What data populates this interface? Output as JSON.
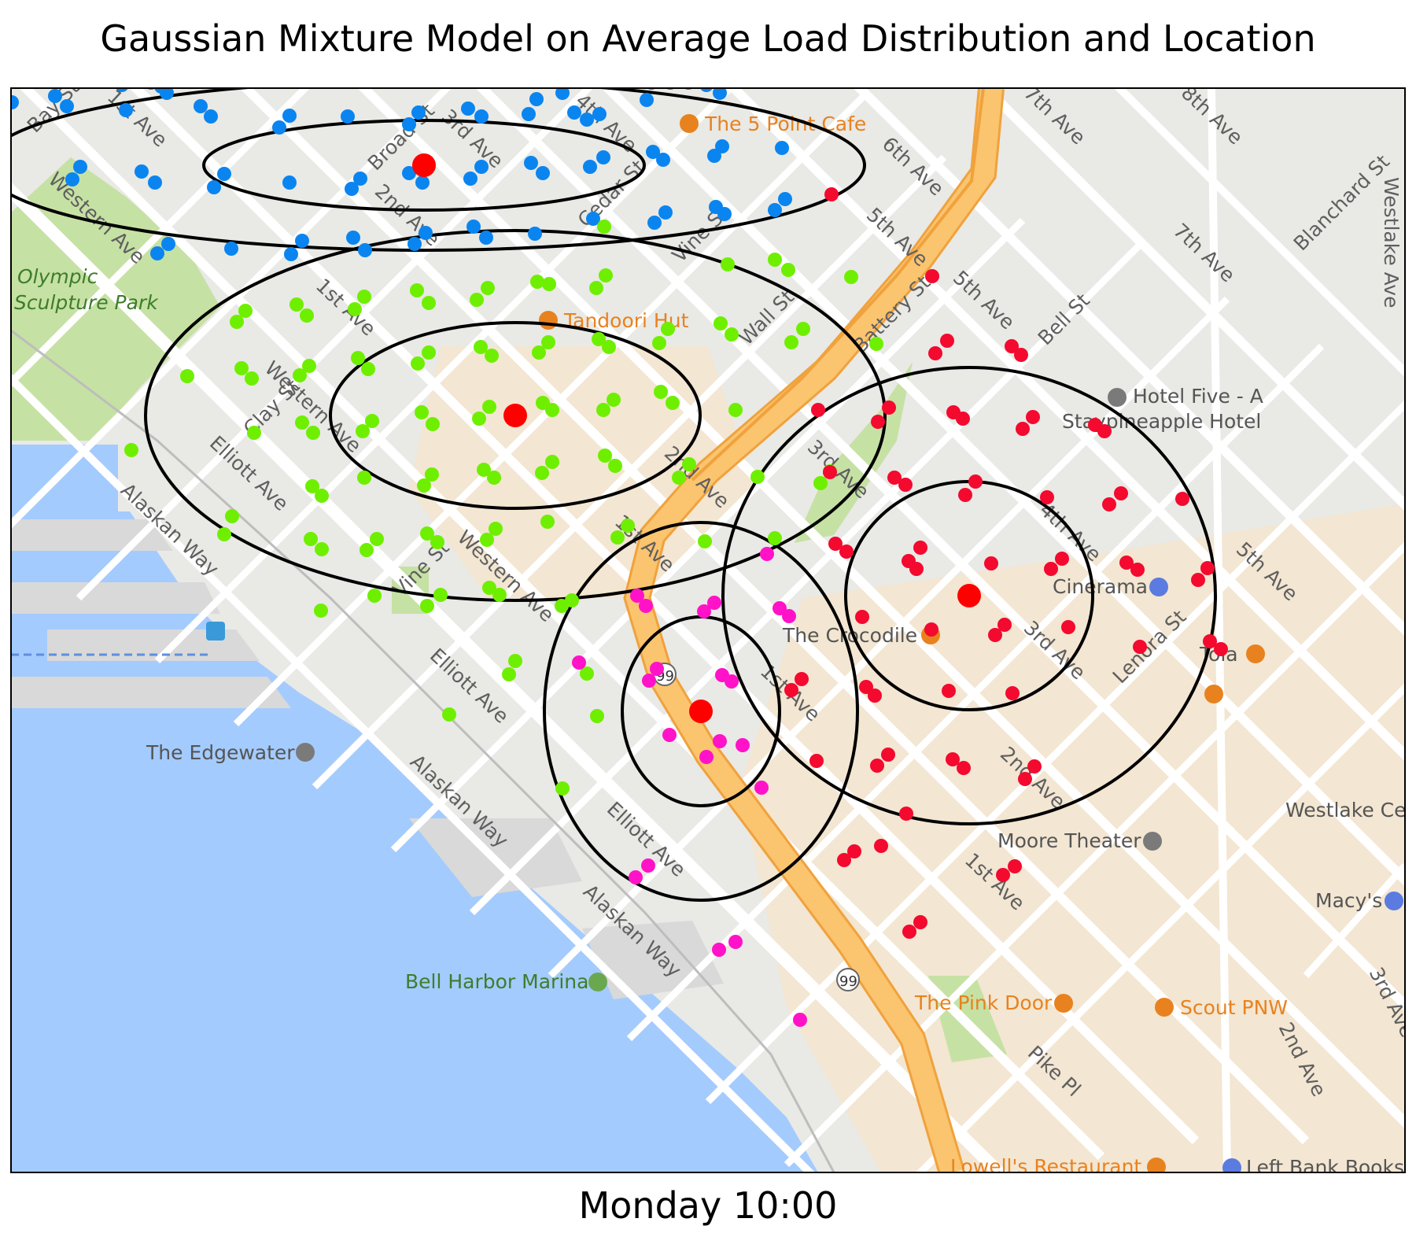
{
  "title": "Gaussian Mixture Model on Average Load Distribution and Location",
  "footer": "Monday 10:00",
  "colors": {
    "water": "#a4cbfd",
    "land": "#e9e9e6",
    "park": "#c6e1a4",
    "commercial": "#f3e6d2",
    "highway": "#fbc46f",
    "highway_edge": "#f0a23c",
    "road": "#ffffff",
    "poi_food": "#e8821e",
    "poi_entertain": "#7a7a7a",
    "poi_shop": "#5b7be0"
  },
  "map_labels": [
    {
      "text": "1st Ave"
    },
    {
      "text": "Bay St"
    },
    {
      "text": "Broad St"
    },
    {
      "text": "3rd Ave"
    },
    {
      "text": "4th Ave"
    },
    {
      "text": "6th Ave"
    },
    {
      "text": "7th Ave"
    },
    {
      "text": "8th Ave"
    },
    {
      "text": "Western Ave"
    },
    {
      "text": "2nd Ave"
    },
    {
      "text": "Cedar St"
    },
    {
      "text": "Vine St"
    },
    {
      "text": "5th Ave"
    },
    {
      "text": "Blanchard St"
    },
    {
      "text": "Westlake Ave"
    },
    {
      "text": "Wall St"
    },
    {
      "text": "Battery St"
    },
    {
      "text": "Bell St"
    },
    {
      "text": "Clay St"
    },
    {
      "text": "Elliott Ave"
    },
    {
      "text": "Alaskan Way"
    },
    {
      "text": "Lenora St"
    },
    {
      "text": "Pike Pl"
    }
  ],
  "pois": [
    {
      "text": "The 5 Point Cafe",
      "icon": "fork-knife-icon"
    },
    {
      "text": "Tandoori Hut",
      "icon": "fork-knife-icon"
    },
    {
      "text": "Hotel Five - A",
      "icon": "hotel-icon"
    },
    {
      "text": "Staypineapple Hotel",
      "icon": ""
    },
    {
      "text": "Cinerama",
      "icon": "film-icon"
    },
    {
      "text": "The Crocodile",
      "icon": "cocktail-icon"
    },
    {
      "text": "Tola",
      "icon": "fork-knife-icon"
    },
    {
      "text": "The Edgewater",
      "icon": "bed-icon"
    },
    {
      "text": "Moore Theater",
      "icon": "theater-icon"
    },
    {
      "text": "Westlake Ce",
      "icon": ""
    },
    {
      "text": "Macy's",
      "icon": "shopping-bag-icon"
    },
    {
      "text": "Bell Harbor Marina",
      "icon": "marina-icon"
    },
    {
      "text": "The Pink Door",
      "icon": "fork-knife-icon"
    },
    {
      "text": "Scout PNW",
      "icon": "fork-knife-icon"
    },
    {
      "text": "Lowell's Restaurant",
      "icon": "fork-knife-icon"
    },
    {
      "text": "Left Bank Books",
      "icon": "shopping-bag-icon"
    },
    {
      "text": "Olympic Sculpture Park",
      "icon": ""
    },
    {
      "text": "99",
      "icon": "route-shield-icon"
    }
  ],
  "chart_data": {
    "type": "scatter",
    "title": "Gaussian Mixture Model on Average Load Distribution and Location",
    "xlabel": "Monday 10:00",
    "ylabel": "",
    "grid": false,
    "clusters": [
      {
        "color": "#0a85f0",
        "center": [
          539,
          210
        ],
        "ellipses": [
          {
            "rx": 280,
            "ry": 57
          },
          {
            "rx": 560,
            "ry": 108
          }
        ],
        "points": [
          [
            15,
            130
          ],
          [
            70,
            122
          ],
          [
            85,
            135
          ],
          [
            155,
            108
          ],
          [
            160,
            140
          ],
          [
            192,
            105
          ],
          [
            205,
            110
          ],
          [
            255,
            135
          ],
          [
            268,
            148
          ],
          [
            212,
            118
          ],
          [
            355,
            162
          ],
          [
            368,
            147
          ],
          [
            442,
            148
          ],
          [
            448,
            100
          ],
          [
            520,
            158
          ],
          [
            532,
            143
          ],
          [
            595,
            138
          ],
          [
            612,
            148
          ],
          [
            672,
            145
          ],
          [
            682,
            126
          ],
          [
            730,
            143
          ],
          [
            746,
            152
          ],
          [
            762,
            145
          ],
          [
            715,
            118
          ],
          [
            828,
            105
          ],
          [
            852,
            105
          ],
          [
            875,
            105
          ],
          [
            898,
            108
          ],
          [
            915,
            118
          ],
          [
            822,
            127
          ],
          [
            830,
            193
          ],
          [
            843,
            203
          ],
          [
            908,
            198
          ],
          [
            918,
            186
          ],
          [
            994,
            188
          ],
          [
            102,
            212
          ],
          [
            92,
            228
          ],
          [
            180,
            218
          ],
          [
            197,
            232
          ],
          [
            272,
            238
          ],
          [
            285,
            221
          ],
          [
            368,
            232
          ],
          [
            447,
            240
          ],
          [
            458,
            227
          ],
          [
            520,
            220
          ],
          [
            537,
            232
          ],
          [
            598,
            227
          ],
          [
            612,
            212
          ],
          [
            675,
            207
          ],
          [
            690,
            220
          ],
          [
            750,
            212
          ],
          [
            767,
            200
          ],
          [
            754,
            278
          ],
          [
            832,
            283
          ],
          [
            846,
            270
          ],
          [
            910,
            263
          ],
          [
            921,
            272
          ],
          [
            985,
            267
          ],
          [
            998,
            253
          ],
          [
            200,
            322
          ],
          [
            214,
            310
          ],
          [
            294,
            316
          ],
          [
            370,
            323
          ],
          [
            384,
            306
          ],
          [
            449,
            302
          ],
          [
            464,
            318
          ],
          [
            527,
            310
          ],
          [
            541,
            296
          ],
          [
            602,
            288
          ],
          [
            618,
            302
          ],
          [
            680,
            297
          ]
        ]
      },
      {
        "color": "#6fef00",
        "center": [
          655,
          528
        ],
        "ellipses": [
          {
            "rx": 235,
            "ry": 118
          },
          {
            "rx": 470,
            "ry": 235
          }
        ],
        "points": [
          [
            768,
            288
          ],
          [
            925,
            336
          ],
          [
            985,
            330
          ],
          [
            1002,
            343
          ],
          [
            1082,
            352
          ],
          [
            770,
            350
          ],
          [
            758,
            366
          ],
          [
            698,
            361
          ],
          [
            683,
            358
          ],
          [
            620,
            366
          ],
          [
            606,
            381
          ],
          [
            530,
            369
          ],
          [
            545,
            385
          ],
          [
            463,
            377
          ],
          [
            451,
            393
          ],
          [
            377,
            387
          ],
          [
            390,
            401
          ],
          [
            312,
            395
          ],
          [
            301,
            409
          ],
          [
            849,
            418
          ],
          [
            838,
            436
          ],
          [
            916,
            411
          ],
          [
            930,
            425
          ],
          [
            1021,
            418
          ],
          [
            1006,
            435
          ],
          [
            1114,
            437
          ],
          [
            761,
            431
          ],
          [
            774,
            441
          ],
          [
            697,
            435
          ],
          [
            685,
            448
          ],
          [
            625,
            452
          ],
          [
            611,
            441
          ],
          [
            545,
            448
          ],
          [
            531,
            462
          ],
          [
            468,
            469
          ],
          [
            455,
            455
          ],
          [
            393,
            465
          ],
          [
            381,
            477
          ],
          [
            307,
            468
          ],
          [
            320,
            481
          ],
          [
            238,
            478
          ],
          [
            780,
            508
          ],
          [
            767,
            521
          ],
          [
            855,
            512
          ],
          [
            840,
            498
          ],
          [
            935,
            521
          ],
          [
            702,
            521
          ],
          [
            690,
            512
          ],
          [
            622,
            517
          ],
          [
            609,
            532
          ],
          [
            536,
            524
          ],
          [
            550,
            539
          ],
          [
            473,
            535
          ],
          [
            461,
            548
          ],
          [
            384,
            537
          ],
          [
            398,
            550
          ],
          [
            323,
            550
          ],
          [
            167,
            572
          ],
          [
            769,
            579
          ],
          [
            782,
            592
          ],
          [
            876,
            590
          ],
          [
            863,
            607
          ],
          [
            963,
            606
          ],
          [
            1055,
            599
          ],
          [
            1043,
            614
          ],
          [
            702,
            587
          ],
          [
            689,
            601
          ],
          [
            615,
            597
          ],
          [
            628,
            607
          ],
          [
            549,
            603
          ],
          [
            539,
            617
          ],
          [
            463,
            607
          ],
          [
            397,
            618
          ],
          [
            409,
            630
          ],
          [
            295,
            656
          ],
          [
            285,
            679
          ],
          [
            798,
            668
          ],
          [
            785,
            683
          ],
          [
            696,
            663
          ],
          [
            630,
            672
          ],
          [
            619,
            686
          ],
          [
            543,
            678
          ],
          [
            556,
            689
          ],
          [
            479,
            685
          ],
          [
            466,
            699
          ],
          [
            395,
            685
          ],
          [
            409,
            698
          ],
          [
            896,
            688
          ],
          [
            985,
            684
          ],
          [
            622,
            747
          ],
          [
            635,
            756
          ],
          [
            560,
            756
          ],
          [
            543,
            770
          ],
          [
            476,
            757
          ],
          [
            408,
            776
          ],
          [
            714,
            770
          ],
          [
            727,
            763
          ],
          [
            655,
            840
          ],
          [
            647,
            857
          ],
          [
            746,
            856
          ],
          [
            759,
            910
          ],
          [
            571,
            908
          ],
          [
            715,
            1002
          ]
        ]
      },
      {
        "color": "#ff12c8",
        "center": [
          891,
          904
        ],
        "ellipses": [
          {
            "rx": 100,
            "ry": 120
          },
          {
            "rx": 199,
            "ry": 240
          }
        ],
        "points": [
          [
            975,
            704
          ],
          [
            810,
            757
          ],
          [
            821,
            770
          ],
          [
            895,
            777
          ],
          [
            908,
            766
          ],
          [
            991,
            773
          ],
          [
            1003,
            783
          ],
          [
            736,
            842
          ],
          [
            825,
            865
          ],
          [
            835,
            850
          ],
          [
            918,
            858
          ],
          [
            930,
            866
          ],
          [
            851,
            934
          ],
          [
            915,
            942
          ],
          [
            944,
            947
          ],
          [
            898,
            962
          ],
          [
            968,
            1001
          ],
          [
            808,
            1115
          ],
          [
            824,
            1100
          ],
          [
            914,
            1207
          ],
          [
            935,
            1197
          ],
          [
            1017,
            1296
          ]
        ]
      },
      {
        "color": "#f4092f",
        "center": [
          1232,
          757
        ],
        "ellipses": [
          {
            "rx": 157,
            "ry": 145
          },
          {
            "rx": 313,
            "ry": 290
          }
        ],
        "points": [
          [
            1057,
            247
          ],
          [
            1185,
            351
          ],
          [
            1204,
            433
          ],
          [
            1189,
            449
          ],
          [
            1286,
            440
          ],
          [
            1298,
            451
          ],
          [
            1130,
            518
          ],
          [
            1116,
            536
          ],
          [
            1040,
            521
          ],
          [
            1212,
            524
          ],
          [
            1224,
            532
          ],
          [
            1313,
            530
          ],
          [
            1300,
            545
          ],
          [
            1392,
            540
          ],
          [
            1404,
            548
          ],
          [
            1055,
            600
          ],
          [
            1137,
            607
          ],
          [
            1151,
            616
          ],
          [
            1240,
            612
          ],
          [
            1227,
            629
          ],
          [
            1331,
            632
          ],
          [
            1425,
            627
          ],
          [
            1410,
            641
          ],
          [
            1503,
            634
          ],
          [
            1062,
            691
          ],
          [
            1076,
            701
          ],
          [
            1170,
            696
          ],
          [
            1155,
            713
          ],
          [
            1260,
            716
          ],
          [
            1165,
            723
          ],
          [
            1336,
            723
          ],
          [
            1350,
            710
          ],
          [
            1432,
            715
          ],
          [
            1446,
            724
          ],
          [
            1535,
            722
          ],
          [
            1523,
            737
          ],
          [
            1096,
            784
          ],
          [
            1184,
            800
          ],
          [
            1265,
            807
          ],
          [
            1277,
            794
          ],
          [
            1358,
            797
          ],
          [
            1449,
            822
          ],
          [
            1538,
            815
          ],
          [
            1552,
            825
          ],
          [
            1019,
            863
          ],
          [
            1006,
            877
          ],
          [
            1101,
            873
          ],
          [
            1112,
            884
          ],
          [
            1206,
            878
          ],
          [
            1287,
            881
          ],
          [
            1129,
            959
          ],
          [
            1115,
            973
          ],
          [
            1038,
            967
          ],
          [
            1211,
            965
          ],
          [
            1225,
            976
          ],
          [
            1303,
            990
          ],
          [
            1315,
            974
          ],
          [
            1152,
            1034
          ],
          [
            1073,
            1093
          ],
          [
            1086,
            1082
          ],
          [
            1120,
            1075
          ],
          [
            1275,
            1112
          ],
          [
            1290,
            1101
          ],
          [
            1156,
            1184
          ],
          [
            1170,
            1172
          ]
        ]
      }
    ]
  }
}
